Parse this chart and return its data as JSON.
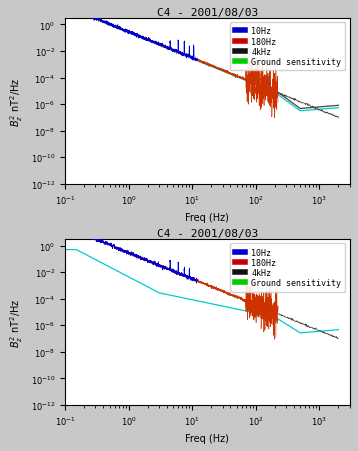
{
  "title_top": "C4 - 2001/08/03",
  "title_bottom": "C4 - 2001/08/03",
  "xlabel": "Freq (Hz)",
  "xlim": [
    0.1,
    3000
  ],
  "ylim": [
    1e-12,
    3.0
  ],
  "legend_labels": [
    "10Hz",
    "180Hz",
    "4kHz",
    "Ground sensitivity"
  ],
  "color_10hz": "#0000cc",
  "color_180hz": "#cc3300",
  "color_4khz": "#444444",
  "color_ground": "#00cccc",
  "color_ground_dark": "#444444",
  "legend_sq_colors": [
    "#0000cc",
    "#cc0000",
    "#111111",
    "#00cc00"
  ],
  "bg_color": "#ffffff",
  "fig_bg": "#c8c8c8",
  "title_fontsize": 8,
  "tick_fontsize": 6,
  "label_fontsize": 7,
  "legend_fontsize": 6
}
